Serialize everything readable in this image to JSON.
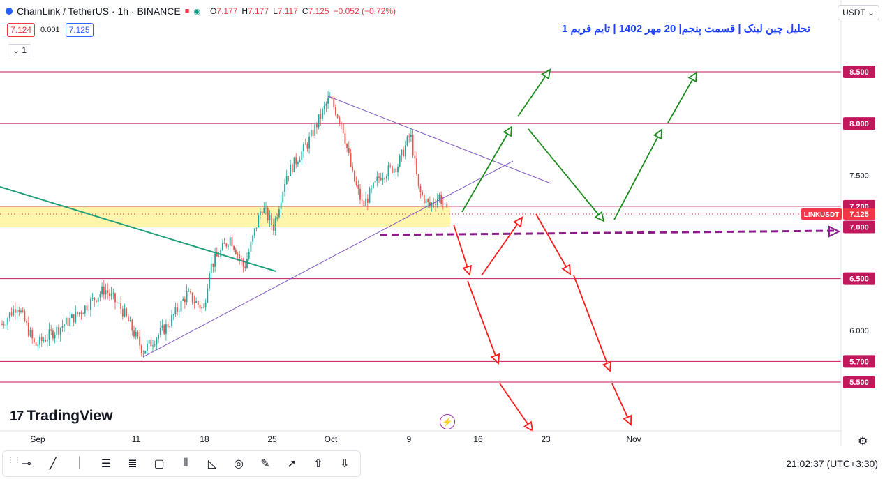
{
  "header": {
    "symbol": "ChainLink / TetherUS · 1h · BINANCE",
    "ohlc": {
      "o_label": "O",
      "o": "7.177",
      "h_label": "H",
      "h": "7.177",
      "l_label": "L",
      "l": "7.117",
      "c_label": "C",
      "c": "7.125",
      "chg": "−0.052 (−0.72%)"
    },
    "sell": "7.124",
    "spread": "0.001",
    "buy": "7.125",
    "collapse": "1",
    "currency": "USDT"
  },
  "annotation_text": "تحلیل چین لینک | قسمت پنجم| 20 مهر 1402 | تایم فریم 1",
  "brand": "TradingView",
  "clock": "21:02:37 (UTC+3:30)",
  "colors": {
    "up": "#26a69a",
    "down": "#ef5350",
    "level": "#c2185b",
    "zone": "#fff59d",
    "green_arrow": "#1b8a1b",
    "red_arrow": "#ff1a1a",
    "trend_green": "#1f9e7a",
    "trend_purple": "#7e57c2",
    "dash_purple": "#8e1b8e",
    "accent": "#2962ff"
  },
  "toolbar": [
    "cursor-line-icon",
    "trend-line-icon",
    "vertical-line-icon",
    "channel-icon",
    "fib-icon",
    "rectangle-icon",
    "pitchfork-icon",
    "triangle-icon",
    "circle-icon",
    "brush-icon",
    "arrow-icon",
    "arrow-up-icon",
    "arrow-down-icon"
  ],
  "chart_data": {
    "type": "candlestick",
    "symbol_label": "LINKUSDT",
    "last_price": "7.125",
    "y_ticks": [
      "6.000",
      "7.500"
    ],
    "levels": [
      {
        "label": "8.500",
        "value": 8.5
      },
      {
        "label": "8.000",
        "value": 8.0
      },
      {
        "label": "7.200",
        "value": 7.2
      },
      {
        "label": "7.000",
        "value": 7.0
      },
      {
        "label": "6.500",
        "value": 6.5
      },
      {
        "label": "5.700",
        "value": 5.7
      },
      {
        "label": "5.500",
        "value": 5.5
      }
    ],
    "x_labels": [
      "Sep",
      "11",
      "18",
      "25",
      "Oct",
      "9",
      "16",
      "23",
      "Nov"
    ],
    "ylim": [
      5.0,
      8.9
    ],
    "zone": [
      7.0,
      7.2
    ]
  }
}
